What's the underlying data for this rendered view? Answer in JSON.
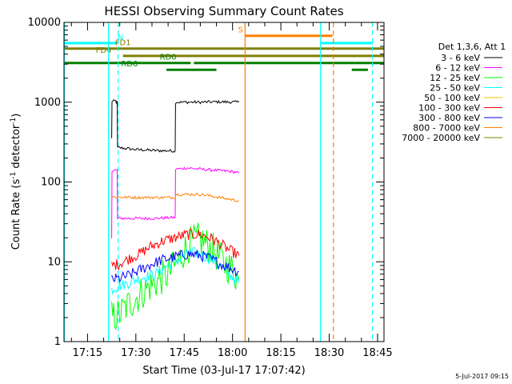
{
  "chart_data": {
    "type": "line",
    "title": "HESSI Observing Summary Count Rates",
    "xlabel": "Start Time (03-Jul-17 17:07:42)",
    "ylabel": "Count Rate (s",
    "ylabel_sup1": "-1",
    "ylabel_mid": " detector",
    "ylabel_sup2": "-1",
    "ylabel_end": ")",
    "footer": "5-Jul-2017 09:15",
    "xaxis_units": "minutes since 17:00",
    "xlim": [
      7.7,
      107.0
    ],
    "ylim": [
      1,
      10000
    ],
    "yscale": "log",
    "x_ticks": [
      {
        "value": 15,
        "label": "17:15"
      },
      {
        "value": 30,
        "label": "17:30"
      },
      {
        "value": 45,
        "label": "17:45"
      },
      {
        "value": 60,
        "label": "18:00"
      },
      {
        "value": 75,
        "label": "18:15"
      },
      {
        "value": 90,
        "label": "18:30"
      },
      {
        "value": 105,
        "label": "18:45"
      }
    ],
    "y_ticks": [
      {
        "value": 1,
        "label": "1"
      },
      {
        "value": 10,
        "label": "10"
      },
      {
        "value": 100,
        "label": "100"
      },
      {
        "value": 1000,
        "label": "1000"
      },
      {
        "value": 10000,
        "label": "10000"
      }
    ],
    "legend_header": "Det 1,3,6, Att 1",
    "legend_position": "right",
    "series": [
      {
        "name": "3 - 6 keV",
        "color": "#000000",
        "points": [
          [
            22.5,
            350
          ],
          [
            22.6,
            1030
          ],
          [
            23.8,
            1030
          ],
          [
            23.9,
            1000
          ],
          [
            24.2,
            1000
          ],
          [
            24.3,
            270
          ],
          [
            24.6,
            270
          ],
          [
            30,
            255
          ],
          [
            36,
            248
          ],
          [
            42,
            245
          ],
          [
            42.2,
            245
          ],
          [
            42.3,
            1000
          ],
          [
            50,
            1000
          ],
          [
            55,
            1010
          ],
          [
            60,
            1005
          ],
          [
            62,
            1000
          ]
        ]
      },
      {
        "name": "6 - 12 keV",
        "color": "#ff00ff",
        "points": [
          [
            22.5,
            20
          ],
          [
            22.6,
            140
          ],
          [
            24.2,
            140
          ],
          [
            24.3,
            35
          ],
          [
            30,
            35
          ],
          [
            36,
            35
          ],
          [
            42,
            36
          ],
          [
            42.2,
            36
          ],
          [
            42.3,
            145
          ],
          [
            46,
            150
          ],
          [
            50,
            145
          ],
          [
            55,
            140
          ],
          [
            60,
            135
          ],
          [
            62,
            130
          ]
        ]
      },
      {
        "name": "12 - 25 keV",
        "color": "#00ff00",
        "points": [
          [
            22.5,
            2
          ],
          [
            25,
            2.2
          ],
          [
            28,
            3
          ],
          [
            30,
            3.5
          ],
          [
            33,
            4.5
          ],
          [
            36,
            5.5
          ],
          [
            40,
            7
          ],
          [
            43,
            10
          ],
          [
            45,
            14
          ],
          [
            47,
            17
          ],
          [
            49,
            19
          ],
          [
            51,
            18
          ],
          [
            54,
            14
          ],
          [
            57,
            10
          ],
          [
            60,
            8
          ],
          [
            62,
            6
          ]
        ]
      },
      {
        "name": "25 - 50 keV",
        "color": "#00ffff",
        "points": [
          [
            22.5,
            4.5
          ],
          [
            25,
            5
          ],
          [
            28,
            5.5
          ],
          [
            30,
            6
          ],
          [
            33,
            6.5
          ],
          [
            36,
            7
          ],
          [
            40,
            9
          ],
          [
            44,
            11
          ],
          [
            46,
            12.5
          ],
          [
            48,
            13
          ],
          [
            50,
            12.5
          ],
          [
            53,
            11
          ],
          [
            56,
            9
          ],
          [
            59,
            7
          ],
          [
            62,
            5.5
          ]
        ]
      },
      {
        "name": "50 - 100 keV",
        "color": "#ffc000",
        "points": []
      },
      {
        "name": "100 - 300 keV",
        "color": "#ff0000",
        "points": [
          [
            22.5,
            9
          ],
          [
            25,
            9.5
          ],
          [
            28,
            11
          ],
          [
            31,
            12.5
          ],
          [
            34,
            15
          ],
          [
            38,
            18
          ],
          [
            42,
            20
          ],
          [
            46,
            22
          ],
          [
            50,
            22
          ],
          [
            53,
            20
          ],
          [
            56,
            17
          ],
          [
            59,
            14
          ],
          [
            62,
            12
          ]
        ]
      },
      {
        "name": "300 - 800 keV",
        "color": "#0000ff",
        "points": [
          [
            22.5,
            6
          ],
          [
            25,
            6.2
          ],
          [
            28,
            6.8
          ],
          [
            31,
            7.8
          ],
          [
            34,
            9
          ],
          [
            38,
            10.5
          ],
          [
            42,
            11.5
          ],
          [
            46,
            12.5
          ],
          [
            50,
            12
          ],
          [
            53,
            11
          ],
          [
            56,
            9.5
          ],
          [
            59,
            8.5
          ],
          [
            62,
            7.5
          ]
        ]
      },
      {
        "name": "800 - 7000 keV",
        "color": "#ff7f00",
        "points": [
          [
            22.5,
            65
          ],
          [
            30,
            64
          ],
          [
            36,
            64
          ],
          [
            42,
            64
          ],
          [
            42.2,
            64
          ],
          [
            42.3,
            70
          ],
          [
            50,
            70
          ],
          [
            55,
            65
          ],
          [
            60,
            60
          ],
          [
            62,
            58
          ]
        ]
      },
      {
        "name": "7000 - 20000 keV",
        "color": "#7f7f00",
        "points": []
      }
    ],
    "flag_bars": [
      {
        "label": "N",
        "color": "#00ffff",
        "y": 5500,
        "segments": [
          [
            7.7,
            24.5
          ],
          [
            87.5,
            103.5
          ]
        ]
      },
      {
        "label": "S",
        "color": "#ff7f00",
        "y": 6800,
        "segments": [
          [
            64,
            91
          ]
        ]
      },
      {
        "label": "FD1",
        "color": "#7f7f00",
        "y": 4700,
        "segments": [
          [
            7.7,
            107
          ]
        ]
      },
      {
        "label": "FD4",
        "color": "#7f7f00",
        "y": 3800,
        "segments": [
          [
            26,
            42
          ],
          [
            42,
            99
          ],
          [
            99,
            107
          ]
        ]
      },
      {
        "label": "RD0",
        "color": "#007f00",
        "y": 3100,
        "segments": [
          [
            7.7,
            32
          ],
          [
            32,
            47
          ],
          [
            48,
            98
          ],
          [
            98,
            107
          ]
        ]
      },
      {
        "label": "RD6",
        "color": "#007f00",
        "y": 2550,
        "segments": [
          [
            39.5,
            55
          ],
          [
            97,
            102
          ]
        ]
      }
    ],
    "vertical_lines": [
      {
        "x": 7.8,
        "color": "#00ffff",
        "style": "solid",
        "label": ""
      },
      {
        "x": 21.5,
        "color": "#00ffff",
        "style": "solid",
        "label": ""
      },
      {
        "x": 24.5,
        "color": "#00ffff",
        "style": "dashed",
        "label": ""
      },
      {
        "x": 63.9,
        "color": "#ff7f00",
        "style": "solid",
        "label": ""
      },
      {
        "x": 87.3,
        "color": "#00ffff",
        "style": "solid",
        "label": ""
      },
      {
        "x": 91.3,
        "color": "#ff7f00",
        "style": "dashed",
        "label": ""
      },
      {
        "x": 103.4,
        "color": "#00ffff",
        "style": "dashed",
        "label": ""
      }
    ]
  }
}
